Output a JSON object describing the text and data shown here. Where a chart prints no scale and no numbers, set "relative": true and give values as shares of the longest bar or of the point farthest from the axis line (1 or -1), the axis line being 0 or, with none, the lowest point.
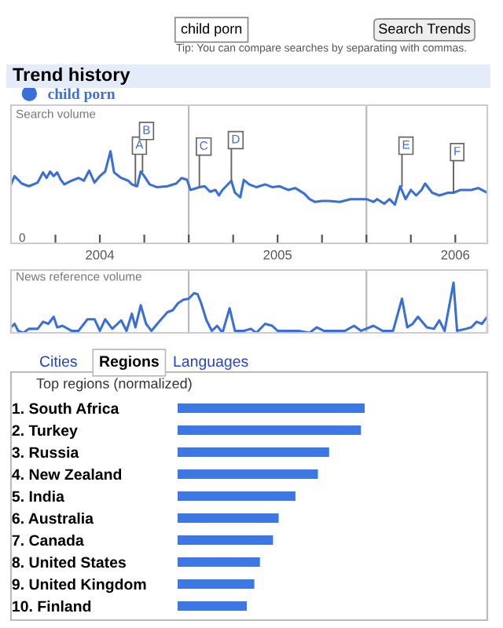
{
  "chart_data": [
    {
      "type": "line",
      "title": "Trend history",
      "ylabel": "Search volume",
      "relative": true,
      "legend": "top left",
      "marker": "none",
      "line_style": "solid",
      "grid": false,
      "xlim": [
        2004.0,
        2006.68
      ],
      "xticks": [
        {
          "value": 2004.25,
          "label": null
        },
        {
          "value": 2004.5,
          "label": "2004"
        },
        {
          "value": 2004.75,
          "label": null
        },
        {
          "value": 2005.0,
          "label": null
        },
        {
          "value": 2005.25,
          "label": null
        },
        {
          "value": 2005.5,
          "label": "2005"
        },
        {
          "value": 2005.75,
          "label": null
        },
        {
          "value": 2006.0,
          "label": null
        },
        {
          "value": 2006.25,
          "label": null
        },
        {
          "value": 2006.5,
          "label": "2006"
        }
      ],
      "ref_lines": [
        {
          "axis": "x",
          "value": 2005.0,
          "label": null,
          "color": "#bbbbbb"
        },
        {
          "axis": "x",
          "value": 2006.0,
          "label": null,
          "color": "#bbbbbb"
        }
      ],
      "annotations": [
        "Tip: You can compare searches by separating with commas.",
        "Search Trends",
        "0",
        {
          "text": "A",
          "x": 2004.7,
          "y": 0.62
        },
        {
          "text": "B",
          "x": 2004.74,
          "y": 0.78
        },
        {
          "text": "C",
          "x": 2005.06,
          "y": 0.61
        },
        {
          "text": "D",
          "x": 2005.24,
          "y": 0.68
        },
        {
          "text": "E",
          "x": 2006.2,
          "y": 0.62
        },
        {
          "text": "F",
          "x": 2006.49,
          "y": 0.55
        }
      ],
      "series": [
        {
          "name": "child porn",
          "color": "#3a6fd8",
          "x": [
            2004.0,
            2004.02,
            2004.06,
            2004.1,
            2004.15,
            2004.18,
            2004.2,
            2004.22,
            2004.24,
            2004.26,
            2004.28,
            2004.3,
            2004.34,
            2004.38,
            2004.41,
            2004.44,
            2004.47,
            2004.5,
            2004.53,
            2004.56,
            2004.58,
            2004.62,
            2004.66,
            2004.68,
            2004.71,
            2004.73,
            2004.75,
            2004.78,
            2004.82,
            2004.88,
            2004.93,
            2004.96,
            2004.99,
            2005.01,
            2005.06,
            2005.09,
            2005.12,
            2005.15,
            2005.17,
            2005.19,
            2005.24,
            2005.26,
            2005.29,
            2005.31,
            2005.34,
            2005.38,
            2005.43,
            2005.47,
            2005.51,
            2005.56,
            2005.6,
            2005.65,
            2005.68,
            2005.71,
            2005.75,
            2005.79,
            2005.85,
            2005.91,
            2005.97,
            2006.0,
            2006.04,
            2006.06,
            2006.1,
            2006.13,
            2006.16,
            2006.19,
            2006.22,
            2006.25,
            2006.28,
            2006.31,
            2006.33,
            2006.37,
            2006.41,
            2006.46,
            2006.49,
            2006.53,
            2006.59,
            2006.63,
            2006.68
          ],
          "values": [
            0.64,
            0.73,
            0.65,
            0.62,
            0.66,
            0.77,
            0.71,
            0.78,
            0.73,
            0.77,
            0.69,
            0.64,
            0.68,
            0.71,
            0.68,
            0.79,
            0.66,
            0.73,
            0.78,
            1,
            0.77,
            0.71,
            0.68,
            0.64,
            0.62,
            0.78,
            0.73,
            0.64,
            0.61,
            0.62,
            0.65,
            0.71,
            0.69,
            0.58,
            0.61,
            0.62,
            0.56,
            0.58,
            0.52,
            0.58,
            0.68,
            0.55,
            0.5,
            0.69,
            0.64,
            0.61,
            0.64,
            0.61,
            0.62,
            0.58,
            0.6,
            0.54,
            0.48,
            0.45,
            0.46,
            0.46,
            0.45,
            0.48,
            0.48,
            0.48,
            0.45,
            0.48,
            0.43,
            0.48,
            0.42,
            0.62,
            0.48,
            0.58,
            0.52,
            0.58,
            0.65,
            0.55,
            0.52,
            0.55,
            0.55,
            0.58,
            0.58,
            0.6,
            0.55
          ]
        }
      ]
    },
    {
      "type": "line",
      "ylabel": "News reference volume",
      "relative": true,
      "marker": "none",
      "line_style": "solid",
      "grid": false,
      "tick_labels": false,
      "xlim": [
        2004.0,
        2006.68
      ],
      "ref_lines": [
        {
          "axis": "x",
          "value": 2005.0,
          "label": null,
          "color": "#bbbbbb"
        },
        {
          "axis": "x",
          "value": 2006.0,
          "label": null,
          "color": "#bbbbbb"
        }
      ],
      "series": [
        {
          "color": "#3a6fd8",
          "x": [
            2004.0,
            2004.02,
            2004.04,
            2004.07,
            2004.1,
            2004.15,
            2004.18,
            2004.21,
            2004.24,
            2004.26,
            2004.29,
            2004.34,
            2004.38,
            2004.43,
            2004.47,
            2004.5,
            2004.53,
            2004.57,
            2004.62,
            2004.65,
            2004.68,
            2004.7,
            2004.73,
            2004.76,
            2004.79,
            2004.84,
            2004.88,
            2004.91,
            2004.94,
            2004.97,
            2005.0,
            2005.03,
            2005.05,
            2005.07,
            2005.1,
            2005.13,
            2005.16,
            2005.19,
            2005.23,
            2005.26,
            2005.31,
            2005.35,
            2005.38,
            2005.43,
            2005.47,
            2005.5,
            2005.56,
            2005.62,
            2005.68,
            2005.72,
            2005.76,
            2005.82,
            2005.88,
            2005.93,
            2005.97,
            2006.04,
            2006.09,
            2006.15,
            2006.2,
            2006.23,
            2006.26,
            2006.29,
            2006.34,
            2006.38,
            2006.41,
            2006.44,
            2006.49,
            2006.51,
            2006.56,
            2006.59,
            2006.62,
            2006.65,
            2006.68
          ],
          "values": [
            0.11,
            0.18,
            0.04,
            0,
            0.08,
            0.08,
            0.22,
            0.18,
            0.32,
            0.11,
            0.14,
            0.04,
            0.04,
            0.27,
            0.27,
            0.04,
            0.27,
            0.08,
            0.25,
            0.04,
            0.38,
            0.11,
            0.55,
            0.18,
            0.04,
            0.25,
            0.41,
            0.45,
            0.59,
            0.66,
            0.68,
            0.79,
            0.77,
            0.59,
            0.25,
            0.04,
            0.14,
            0,
            0.49,
            0.04,
            0.04,
            0.08,
            0,
            0.18,
            0.14,
            0.04,
            0.04,
            0.04,
            0,
            0.11,
            0.04,
            0.04,
            0.04,
            0.14,
            0.04,
            0.14,
            0.04,
            0.04,
            0.68,
            0.11,
            0.18,
            0.32,
            0.11,
            0.08,
            0.25,
            0.04,
            1,
            0.04,
            0.08,
            0.11,
            0.22,
            0.18,
            0.32
          ]
        }
      ]
    },
    {
      "type": "bar",
      "orientation": "horizontal",
      "relative": true,
      "title": "Top regions (normalized)",
      "color": "#3d77e3",
      "annotations": [
        "Cities",
        "Regions",
        "Languages"
      ],
      "categories": [
        "1. South Africa",
        "2. Turkey",
        "3. Russia",
        "4. New Zealand",
        "5. India",
        "6. Australia",
        "7. Canada",
        "8. United States",
        "9. United Kingdom",
        "10. Finland"
      ],
      "values": [
        1,
        0.98,
        0.81,
        0.75,
        0.63,
        0.54,
        0.51,
        0.44,
        0.41,
        0.37
      ]
    }
  ]
}
